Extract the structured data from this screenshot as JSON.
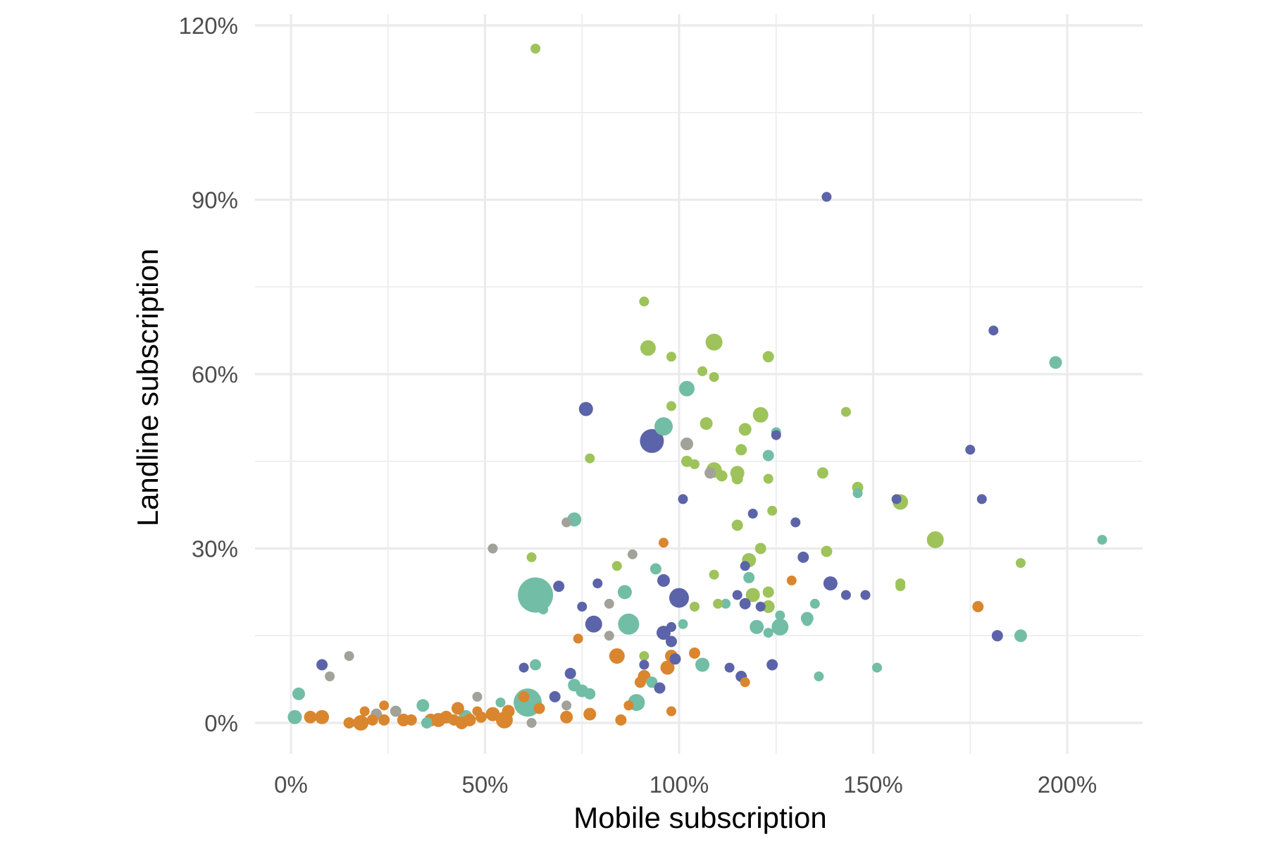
{
  "chart_data": {
    "type": "scatter",
    "title": "",
    "xlabel": "Mobile subscription",
    "ylabel": "Landline subscription",
    "xlim": [
      -10,
      220
    ],
    "ylim": [
      -10,
      121
    ],
    "x_ticks": [
      0,
      50,
      100,
      150,
      200
    ],
    "x_tick_labels": [
      "0%",
      "50%",
      "100%",
      "150%",
      "200%"
    ],
    "y_ticks": [
      0,
      30,
      60,
      90,
      120
    ],
    "y_tick_labels": [
      "0%",
      "30%",
      "60%",
      "90%",
      "120%"
    ],
    "grid": true,
    "legend": "none",
    "colors": {
      "navy": "#5b64a9",
      "teal": "#72bda5",
      "green": "#9dc35a",
      "orange": "#d9862f",
      "gray": "#a2a29a",
      "grid": "#ebebeb",
      "background": "#ffffff"
    },
    "points": [
      {
        "x": 63,
        "y": 116,
        "size": 7,
        "color": "green"
      },
      {
        "x": 138,
        "y": 90.5,
        "size": 7,
        "color": "navy"
      },
      {
        "x": 91,
        "y": 72.5,
        "size": 7,
        "color": "green"
      },
      {
        "x": 181,
        "y": 67.5,
        "size": 7,
        "color": "navy"
      },
      {
        "x": 109,
        "y": 65.5,
        "size": 12,
        "color": "green"
      },
      {
        "x": 92,
        "y": 64.5,
        "size": 11,
        "color": "green"
      },
      {
        "x": 98,
        "y": 63,
        "size": 7,
        "color": "green"
      },
      {
        "x": 123,
        "y": 63,
        "size": 8,
        "color": "green"
      },
      {
        "x": 197,
        "y": 62,
        "size": 9,
        "color": "teal"
      },
      {
        "x": 106,
        "y": 60.5,
        "size": 7,
        "color": "green"
      },
      {
        "x": 109,
        "y": 59.5,
        "size": 7,
        "color": "green"
      },
      {
        "x": 102,
        "y": 57.5,
        "size": 11,
        "color": "teal"
      },
      {
        "x": 98,
        "y": 54.5,
        "size": 7,
        "color": "green"
      },
      {
        "x": 76,
        "y": 54,
        "size": 10,
        "color": "navy"
      },
      {
        "x": 143,
        "y": 53.5,
        "size": 7,
        "color": "green"
      },
      {
        "x": 121,
        "y": 53,
        "size": 11,
        "color": "green"
      },
      {
        "x": 107,
        "y": 51.5,
        "size": 9,
        "color": "green"
      },
      {
        "x": 96,
        "y": 51,
        "size": 13,
        "color": "teal"
      },
      {
        "x": 117,
        "y": 50.5,
        "size": 9,
        "color": "green"
      },
      {
        "x": 125,
        "y": 50,
        "size": 7,
        "color": "teal"
      },
      {
        "x": 125,
        "y": 49.5,
        "size": 7,
        "color": "navy"
      },
      {
        "x": 93,
        "y": 48.5,
        "size": 17,
        "color": "navy"
      },
      {
        "x": 102,
        "y": 48,
        "size": 9,
        "color": "gray"
      },
      {
        "x": 116,
        "y": 47,
        "size": 8,
        "color": "green"
      },
      {
        "x": 175,
        "y": 47,
        "size": 7,
        "color": "navy"
      },
      {
        "x": 123,
        "y": 46,
        "size": 8,
        "color": "teal"
      },
      {
        "x": 77,
        "y": 45.5,
        "size": 7,
        "color": "green"
      },
      {
        "x": 102,
        "y": 45,
        "size": 8,
        "color": "green"
      },
      {
        "x": 104,
        "y": 44.5,
        "size": 7,
        "color": "green"
      },
      {
        "x": 108,
        "y": 43,
        "size": 8,
        "color": "gray"
      },
      {
        "x": 109,
        "y": 43.5,
        "size": 11,
        "color": "green"
      },
      {
        "x": 111,
        "y": 42.5,
        "size": 8,
        "color": "green"
      },
      {
        "x": 115,
        "y": 43,
        "size": 10,
        "color": "green"
      },
      {
        "x": 115,
        "y": 42,
        "size": 8,
        "color": "green"
      },
      {
        "x": 137,
        "y": 43,
        "size": 8,
        "color": "green"
      },
      {
        "x": 123,
        "y": 42,
        "size": 7,
        "color": "green"
      },
      {
        "x": 146,
        "y": 40.5,
        "size": 8,
        "color": "green"
      },
      {
        "x": 146,
        "y": 39.5,
        "size": 7,
        "color": "teal"
      },
      {
        "x": 101,
        "y": 38.5,
        "size": 7,
        "color": "navy"
      },
      {
        "x": 156,
        "y": 38.5,
        "size": 7,
        "color": "navy"
      },
      {
        "x": 178,
        "y": 38.5,
        "size": 7,
        "color": "navy"
      },
      {
        "x": 157,
        "y": 38,
        "size": 11,
        "color": "green"
      },
      {
        "x": 124,
        "y": 36.5,
        "size": 7,
        "color": "green"
      },
      {
        "x": 119,
        "y": 36,
        "size": 7,
        "color": "navy"
      },
      {
        "x": 73,
        "y": 35,
        "size": 10,
        "color": "teal"
      },
      {
        "x": 71,
        "y": 34.5,
        "size": 7,
        "color": "gray"
      },
      {
        "x": 130,
        "y": 34.5,
        "size": 7,
        "color": "navy"
      },
      {
        "x": 115,
        "y": 34,
        "size": 8,
        "color": "green"
      },
      {
        "x": 209,
        "y": 31.5,
        "size": 7,
        "color": "teal"
      },
      {
        "x": 166,
        "y": 31.5,
        "size": 12,
        "color": "green"
      },
      {
        "x": 96,
        "y": 31,
        "size": 7,
        "color": "orange"
      },
      {
        "x": 121,
        "y": 30,
        "size": 8,
        "color": "green"
      },
      {
        "x": 52,
        "y": 30,
        "size": 7,
        "color": "gray"
      },
      {
        "x": 138,
        "y": 29.5,
        "size": 8,
        "color": "green"
      },
      {
        "x": 88,
        "y": 29,
        "size": 7,
        "color": "gray"
      },
      {
        "x": 62,
        "y": 28.5,
        "size": 7,
        "color": "green"
      },
      {
        "x": 132,
        "y": 28.5,
        "size": 8,
        "color": "navy"
      },
      {
        "x": 118,
        "y": 28,
        "size": 10,
        "color": "green"
      },
      {
        "x": 188,
        "y": 27.5,
        "size": 7,
        "color": "green"
      },
      {
        "x": 84,
        "y": 27,
        "size": 7,
        "color": "green"
      },
      {
        "x": 117,
        "y": 27,
        "size": 7,
        "color": "navy"
      },
      {
        "x": 94,
        "y": 26.5,
        "size": 8,
        "color": "teal"
      },
      {
        "x": 109,
        "y": 25.5,
        "size": 7,
        "color": "green"
      },
      {
        "x": 118,
        "y": 25,
        "size": 8,
        "color": "teal"
      },
      {
        "x": 96,
        "y": 24.5,
        "size": 9,
        "color": "navy"
      },
      {
        "x": 129,
        "y": 24.5,
        "size": 7,
        "color": "orange"
      },
      {
        "x": 139,
        "y": 24,
        "size": 10,
        "color": "navy"
      },
      {
        "x": 157,
        "y": 24,
        "size": 7,
        "color": "green"
      },
      {
        "x": 79,
        "y": 24,
        "size": 7,
        "color": "navy"
      },
      {
        "x": 69,
        "y": 23.5,
        "size": 8,
        "color": "navy"
      },
      {
        "x": 157,
        "y": 23.5,
        "size": 7,
        "color": "green"
      },
      {
        "x": 86,
        "y": 22.5,
        "size": 10,
        "color": "teal"
      },
      {
        "x": 123,
        "y": 22.5,
        "size": 8,
        "color": "green"
      },
      {
        "x": 143,
        "y": 22,
        "size": 7,
        "color": "navy"
      },
      {
        "x": 148,
        "y": 22,
        "size": 7,
        "color": "navy"
      },
      {
        "x": 119,
        "y": 22,
        "size": 10,
        "color": "green"
      },
      {
        "x": 63,
        "y": 22,
        "size": 25,
        "color": "teal"
      },
      {
        "x": 115,
        "y": 22,
        "size": 7,
        "color": "navy"
      },
      {
        "x": 100,
        "y": 21.5,
        "size": 14,
        "color": "navy"
      },
      {
        "x": 112,
        "y": 20.5,
        "size": 7,
        "color": "teal"
      },
      {
        "x": 110,
        "y": 20.5,
        "size": 7,
        "color": "green"
      },
      {
        "x": 117,
        "y": 20.5,
        "size": 8,
        "color": "navy"
      },
      {
        "x": 104,
        "y": 20,
        "size": 7,
        "color": "green"
      },
      {
        "x": 121,
        "y": 20,
        "size": 7,
        "color": "navy"
      },
      {
        "x": 123,
        "y": 20,
        "size": 9,
        "color": "green"
      },
      {
        "x": 135,
        "y": 20.5,
        "size": 7,
        "color": "teal"
      },
      {
        "x": 75,
        "y": 20,
        "size": 7,
        "color": "navy"
      },
      {
        "x": 82,
        "y": 20.5,
        "size": 7,
        "color": "gray"
      },
      {
        "x": 177,
        "y": 20,
        "size": 8,
        "color": "orange"
      },
      {
        "x": 65,
        "y": 19.5,
        "size": 7,
        "color": "teal"
      },
      {
        "x": 126,
        "y": 18.5,
        "size": 7,
        "color": "teal"
      },
      {
        "x": 133,
        "y": 18,
        "size": 9,
        "color": "teal"
      },
      {
        "x": 133,
        "y": 17.5,
        "size": 7,
        "color": "teal"
      },
      {
        "x": 78,
        "y": 17,
        "size": 12,
        "color": "navy"
      },
      {
        "x": 87,
        "y": 17,
        "size": 15,
        "color": "teal"
      },
      {
        "x": 101,
        "y": 17,
        "size": 7,
        "color": "teal"
      },
      {
        "x": 98,
        "y": 16.5,
        "size": 7,
        "color": "navy"
      },
      {
        "x": 126,
        "y": 16.5,
        "size": 12,
        "color": "teal"
      },
      {
        "x": 120,
        "y": 16.5,
        "size": 10,
        "color": "teal"
      },
      {
        "x": 96,
        "y": 15.5,
        "size": 10,
        "color": "navy"
      },
      {
        "x": 123,
        "y": 15.5,
        "size": 7,
        "color": "teal"
      },
      {
        "x": 82,
        "y": 15,
        "size": 7,
        "color": "gray"
      },
      {
        "x": 188,
        "y": 15,
        "size": 9,
        "color": "teal"
      },
      {
        "x": 182,
        "y": 15,
        "size": 8,
        "color": "navy"
      },
      {
        "x": 98,
        "y": 14,
        "size": 8,
        "color": "navy"
      },
      {
        "x": 74,
        "y": 14.5,
        "size": 7,
        "color": "orange"
      },
      {
        "x": 104,
        "y": 12,
        "size": 8,
        "color": "orange"
      },
      {
        "x": 84,
        "y": 11.5,
        "size": 11,
        "color": "orange"
      },
      {
        "x": 15,
        "y": 11.5,
        "size": 7,
        "color": "gray"
      },
      {
        "x": 98,
        "y": 11.5,
        "size": 9,
        "color": "orange"
      },
      {
        "x": 91,
        "y": 11.5,
        "size": 7,
        "color": "green"
      },
      {
        "x": 99,
        "y": 11,
        "size": 8,
        "color": "navy"
      },
      {
        "x": 106,
        "y": 10,
        "size": 10,
        "color": "teal"
      },
      {
        "x": 124,
        "y": 10,
        "size": 8,
        "color": "navy"
      },
      {
        "x": 63,
        "y": 10,
        "size": 8,
        "color": "teal"
      },
      {
        "x": 8,
        "y": 10,
        "size": 8,
        "color": "navy"
      },
      {
        "x": 91,
        "y": 10,
        "size": 7,
        "color": "navy"
      },
      {
        "x": 97,
        "y": 9.5,
        "size": 10,
        "color": "orange"
      },
      {
        "x": 60,
        "y": 9.5,
        "size": 7,
        "color": "navy"
      },
      {
        "x": 113,
        "y": 9.5,
        "size": 7,
        "color": "navy"
      },
      {
        "x": 151,
        "y": 9.5,
        "size": 7,
        "color": "teal"
      },
      {
        "x": 72,
        "y": 8.5,
        "size": 8,
        "color": "navy"
      },
      {
        "x": 10,
        "y": 8,
        "size": 7,
        "color": "gray"
      },
      {
        "x": 116,
        "y": 8,
        "size": 8,
        "color": "navy"
      },
      {
        "x": 91,
        "y": 8,
        "size": 9,
        "color": "orange"
      },
      {
        "x": 136,
        "y": 8,
        "size": 7,
        "color": "teal"
      },
      {
        "x": 90,
        "y": 7,
        "size": 8,
        "color": "orange"
      },
      {
        "x": 117,
        "y": 7,
        "size": 7,
        "color": "orange"
      },
      {
        "x": 93,
        "y": 7,
        "size": 8,
        "color": "teal"
      },
      {
        "x": 73,
        "y": 6.5,
        "size": 9,
        "color": "teal"
      },
      {
        "x": 95,
        "y": 6,
        "size": 8,
        "color": "navy"
      },
      {
        "x": 75,
        "y": 5.5,
        "size": 9,
        "color": "teal"
      },
      {
        "x": 77,
        "y": 5,
        "size": 8,
        "color": "teal"
      },
      {
        "x": 2,
        "y": 5,
        "size": 9,
        "color": "teal"
      },
      {
        "x": 68,
        "y": 4.5,
        "size": 8,
        "color": "navy"
      },
      {
        "x": 60,
        "y": 4.5,
        "size": 8,
        "color": "orange"
      },
      {
        "x": 48,
        "y": 4.5,
        "size": 7,
        "color": "gray"
      },
      {
        "x": 61,
        "y": 3.5,
        "size": 20,
        "color": "teal"
      },
      {
        "x": 54,
        "y": 3.5,
        "size": 7,
        "color": "teal"
      },
      {
        "x": 89,
        "y": 3.5,
        "size": 12,
        "color": "teal"
      },
      {
        "x": 87,
        "y": 3,
        "size": 7,
        "color": "orange"
      },
      {
        "x": 34,
        "y": 3,
        "size": 9,
        "color": "teal"
      },
      {
        "x": 24,
        "y": 3,
        "size": 7,
        "color": "orange"
      },
      {
        "x": 43,
        "y": 2.5,
        "size": 9,
        "color": "orange"
      },
      {
        "x": 71,
        "y": 3,
        "size": 7,
        "color": "gray"
      },
      {
        "x": 64,
        "y": 2.5,
        "size": 8,
        "color": "orange"
      },
      {
        "x": 19,
        "y": 2,
        "size": 7,
        "color": "orange"
      },
      {
        "x": 27,
        "y": 2,
        "size": 8,
        "color": "gray"
      },
      {
        "x": 48,
        "y": 2,
        "size": 7,
        "color": "orange"
      },
      {
        "x": 22,
        "y": 1.5,
        "size": 8,
        "color": "gray"
      },
      {
        "x": 56,
        "y": 2,
        "size": 9,
        "color": "orange"
      },
      {
        "x": 52,
        "y": 1.5,
        "size": 10,
        "color": "orange"
      },
      {
        "x": 1,
        "y": 1,
        "size": 10,
        "color": "teal"
      },
      {
        "x": 5,
        "y": 1,
        "size": 9,
        "color": "orange"
      },
      {
        "x": 8,
        "y": 1,
        "size": 10,
        "color": "orange"
      },
      {
        "x": 40,
        "y": 1,
        "size": 9,
        "color": "orange"
      },
      {
        "x": 45,
        "y": 1,
        "size": 10,
        "color": "teal"
      },
      {
        "x": 49,
        "y": 1,
        "size": 8,
        "color": "orange"
      },
      {
        "x": 71,
        "y": 1,
        "size": 9,
        "color": "orange"
      },
      {
        "x": 77,
        "y": 1.5,
        "size": 9,
        "color": "orange"
      },
      {
        "x": 38,
        "y": 0.5,
        "size": 10,
        "color": "orange"
      },
      {
        "x": 31,
        "y": 0.5,
        "size": 8,
        "color": "orange"
      },
      {
        "x": 29,
        "y": 0.5,
        "size": 9,
        "color": "orange"
      },
      {
        "x": 24,
        "y": 0.5,
        "size": 8,
        "color": "orange"
      },
      {
        "x": 36,
        "y": 0.5,
        "size": 9,
        "color": "orange"
      },
      {
        "x": 42,
        "y": 0.5,
        "size": 8,
        "color": "orange"
      },
      {
        "x": 55,
        "y": 0.5,
        "size": 12,
        "color": "orange"
      },
      {
        "x": 18,
        "y": 0,
        "size": 11,
        "color": "orange"
      },
      {
        "x": 15,
        "y": 0,
        "size": 8,
        "color": "orange"
      },
      {
        "x": 21,
        "y": 0.5,
        "size": 8,
        "color": "orange"
      },
      {
        "x": 35,
        "y": 0,
        "size": 8,
        "color": "teal"
      },
      {
        "x": 44,
        "y": 0,
        "size": 9,
        "color": "orange"
      },
      {
        "x": 46,
        "y": 0.5,
        "size": 9,
        "color": "orange"
      },
      {
        "x": 62,
        "y": 0,
        "size": 7,
        "color": "gray"
      },
      {
        "x": 85,
        "y": 0.5,
        "size": 8,
        "color": "orange"
      },
      {
        "x": 98,
        "y": 2,
        "size": 7,
        "color": "orange"
      }
    ]
  }
}
